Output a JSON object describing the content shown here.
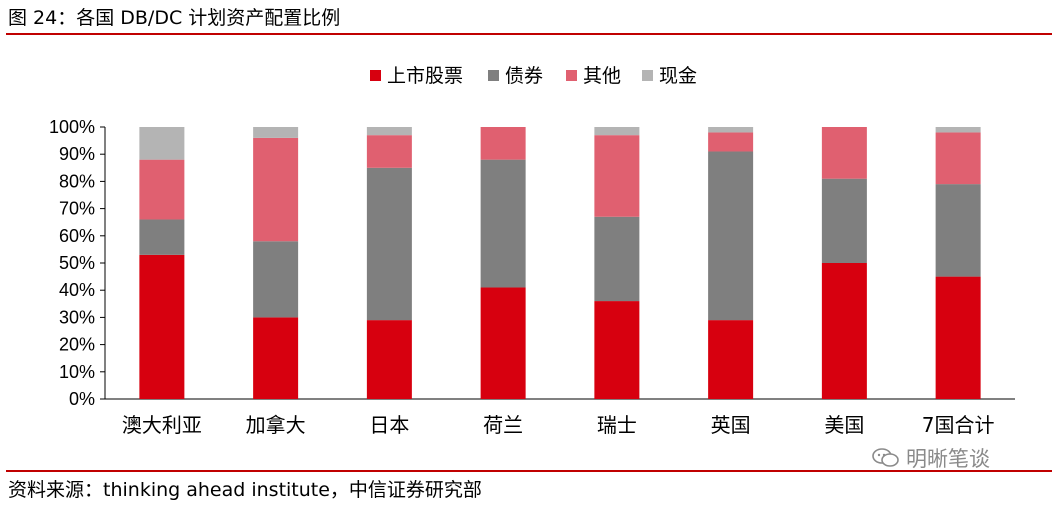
{
  "figure_title": "图 24：各国 DB/DC 计划资产配置比例",
  "source": "资料来源：thinking ahead institute，中信证券研究部",
  "watermark": "明晰笔谈",
  "chart_data": {
    "type": "bar",
    "stacked": true,
    "categories": [
      "澳大利亚",
      "加拿大",
      "日本",
      "荷兰",
      "瑞士",
      "英国",
      "美国",
      "7国合计"
    ],
    "series": [
      {
        "name": "上市股票",
        "color": "#d7000f",
        "values": [
          53,
          30,
          29,
          41,
          36,
          29,
          50,
          45
        ]
      },
      {
        "name": "债券",
        "color": "#7f7f7f",
        "values": [
          13,
          28,
          56,
          47,
          31,
          62,
          31,
          34
        ]
      },
      {
        "name": "其他",
        "color": "#e06070",
        "values": [
          22,
          38,
          12,
          12,
          30,
          7,
          19,
          19
        ]
      },
      {
        "name": "现金",
        "color": "#b4b4b4",
        "values": [
          12,
          4,
          3,
          0,
          3,
          2,
          0,
          2
        ]
      }
    ],
    "ylim": [
      0,
      100
    ],
    "yticks": [
      "0%",
      "10%",
      "20%",
      "30%",
      "40%",
      "50%",
      "60%",
      "70%",
      "80%",
      "90%",
      "100%"
    ],
    "legend_position": "top",
    "grid": false
  }
}
